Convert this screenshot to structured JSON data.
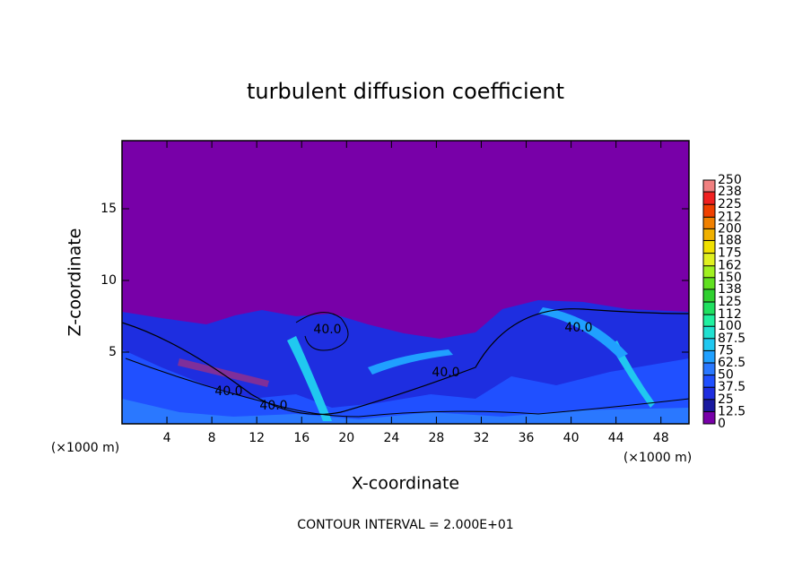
{
  "chart_data": {
    "type": "contour",
    "title": "turbulent diffusion coefficient",
    "xlabel": "X-coordinate",
    "ylabel": "Z-coordinate",
    "unit_label": "(×1000 m)",
    "annotation": "CONTOUR INTERVAL = 2.000E+01",
    "xlim": [
      0,
      50.5
    ],
    "xticks": [
      4,
      8,
      12,
      16,
      20,
      24,
      28,
      32,
      36,
      40,
      44,
      48
    ],
    "ylim": [
      0,
      19.75
    ],
    "yticks": [
      5,
      10,
      15
    ],
    "contour_labels": [
      "40.0",
      "40.0",
      "40.0",
      "40.0",
      "40.0"
    ],
    "colorbar": {
      "ticks": [
        0,
        12.5,
        25,
        37.5,
        50,
        62.5,
        75,
        87.5,
        100,
        112,
        125,
        138,
        150,
        162,
        175,
        188,
        200,
        212,
        225,
        238,
        250
      ],
      "colors": [
        "#7800a8",
        "#1a1aa0",
        "#1e2ee0",
        "#2050ff",
        "#2a78ff",
        "#20a0ff",
        "#20c8f0",
        "#20e0d0",
        "#20f0a0",
        "#20e060",
        "#30d030",
        "#60e020",
        "#a0f020",
        "#e0f020",
        "#f0e000",
        "#f0b000",
        "#f08000",
        "#f04000",
        "#f02020",
        "#f08080"
      ]
    }
  }
}
